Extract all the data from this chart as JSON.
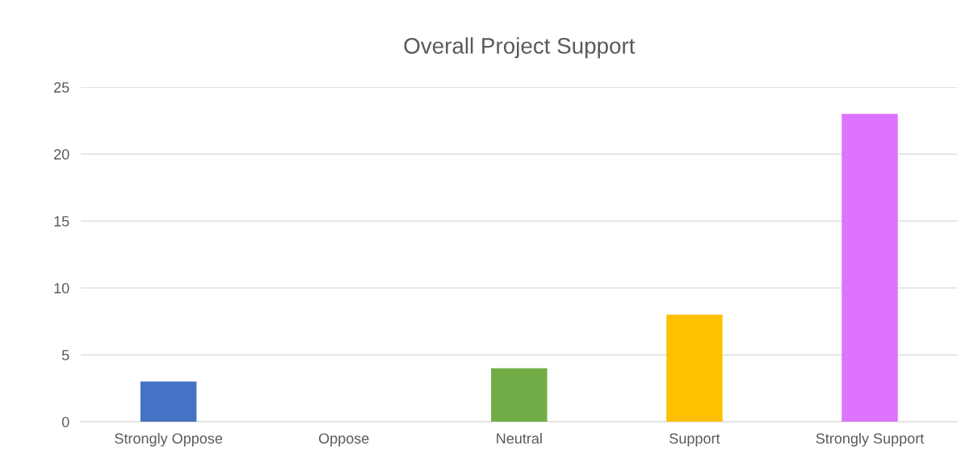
{
  "chart_data": {
    "type": "bar",
    "title": "Overall Project Support",
    "categories": [
      "Strongly Oppose",
      "Oppose",
      "Neutral",
      "Support",
      "Strongly Support"
    ],
    "values": [
      3,
      0,
      4,
      8,
      23
    ],
    "colors": [
      "#4472c4",
      "#ed7d31",
      "#70ad47",
      "#ffc000",
      "#dd73ff"
    ],
    "ylim": [
      0,
      25
    ],
    "yticks": [
      0,
      5,
      10,
      15,
      20,
      25
    ],
    "grid": "y",
    "legend": false
  }
}
